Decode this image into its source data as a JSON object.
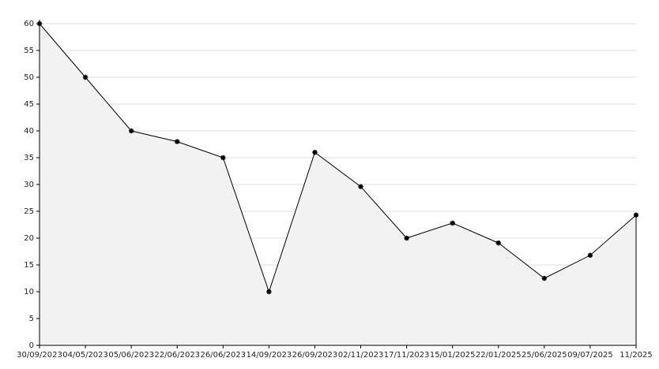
{
  "chart_data": {
    "type": "area",
    "categories": [
      "30/09/2023",
      "04/05/2023",
      "05/06/2023",
      "22/06/2023",
      "26/06/2023",
      "14/09/2023",
      "26/09/2023",
      "02/11/2023",
      "17/11/2023",
      "15/01/2025",
      "22/01/2025",
      "25/06/2025",
      "09/07/2025",
      "11/2025"
    ],
    "values": [
      60,
      50,
      40,
      38,
      35,
      10,
      36,
      29.6,
      20,
      22.8,
      19.1,
      12.5,
      16.8,
      24.3
    ],
    "color": "#000000",
    "fill": "#f2f2f2",
    "ylim": [
      0,
      60
    ],
    "yticks": [
      0,
      5,
      10,
      15,
      20,
      25,
      30,
      35,
      40,
      45,
      50,
      55,
      60
    ],
    "grid": true
  }
}
